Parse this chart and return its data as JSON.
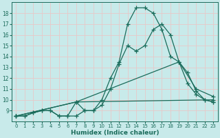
{
  "title": "",
  "xlabel": "Humidex (Indice chaleur)",
  "bg_color": "#c8eaea",
  "grid_color": "#e8c8c8",
  "line_color": "#1a6b5a",
  "xlim": [
    -0.5,
    23.5
  ],
  "ylim": [
    8,
    19
  ],
  "yticks": [
    9,
    10,
    11,
    12,
    13,
    14,
    15,
    16,
    17,
    18
  ],
  "xticks": [
    0,
    1,
    2,
    3,
    4,
    5,
    6,
    7,
    8,
    9,
    10,
    11,
    12,
    13,
    14,
    15,
    16,
    17,
    18,
    19,
    20,
    21,
    22,
    23
  ],
  "lines": [
    {
      "x": [
        0,
        1,
        2,
        3,
        4,
        5,
        6,
        7,
        8,
        9,
        10,
        11,
        12,
        13,
        14,
        15,
        16,
        17,
        18,
        19,
        20,
        21,
        22,
        23
      ],
      "y": [
        8.5,
        8.5,
        8.8,
        9.0,
        9.0,
        8.5,
        8.5,
        8.5,
        9.0,
        9.0,
        10.0,
        12.0,
        13.5,
        17.0,
        18.5,
        18.5,
        18.0,
        16.5,
        14.0,
        13.5,
        11.5,
        10.5,
        10.0,
        9.8
      ]
    },
    {
      "x": [
        0,
        1,
        2,
        3,
        4,
        5,
        6,
        7,
        8,
        9,
        10,
        11,
        12,
        13,
        14,
        15,
        16,
        17,
        18,
        19,
        20,
        21,
        22,
        23
      ],
      "y": [
        8.5,
        8.5,
        8.8,
        9.0,
        9.0,
        8.5,
        8.5,
        9.8,
        9.0,
        9.0,
        9.5,
        11.0,
        13.3,
        15.0,
        14.5,
        15.0,
        16.5,
        17.0,
        16.0,
        13.5,
        12.5,
        10.8,
        10.0,
        9.8
      ]
    },
    {
      "x": [
        0,
        7,
        19,
        21,
        23
      ],
      "y": [
        8.5,
        9.8,
        13.5,
        11.0,
        10.3
      ]
    },
    {
      "x": [
        0,
        7,
        23
      ],
      "y": [
        8.5,
        9.8,
        10.0
      ]
    }
  ]
}
